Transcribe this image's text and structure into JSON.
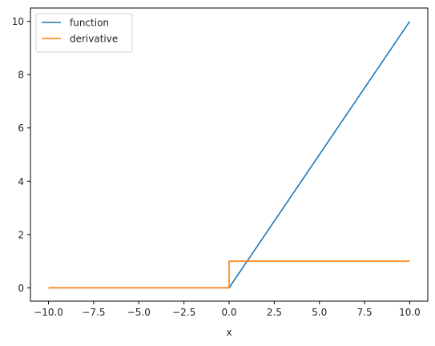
{
  "chart_data": {
    "type": "line",
    "xlabel": "x",
    "ylabel": "",
    "xlim": [
      -11,
      11
    ],
    "ylim": [
      -0.5,
      10.5
    ],
    "xticks": [
      {
        "value": -10.0,
        "label": "−10.0"
      },
      {
        "value": -7.5,
        "label": "−7.5"
      },
      {
        "value": -5.0,
        "label": "−5.0"
      },
      {
        "value": -2.5,
        "label": "−2.5"
      },
      {
        "value": 0.0,
        "label": "0.0"
      },
      {
        "value": 2.5,
        "label": "2.5"
      },
      {
        "value": 5.0,
        "label": "5.0"
      },
      {
        "value": 7.5,
        "label": "7.5"
      },
      {
        "value": 10.0,
        "label": "10.0"
      }
    ],
    "yticks": [
      {
        "value": 0,
        "label": "0"
      },
      {
        "value": 2,
        "label": "2"
      },
      {
        "value": 4,
        "label": "4"
      },
      {
        "value": 6,
        "label": "6"
      },
      {
        "value": 8,
        "label": "8"
      },
      {
        "value": 10,
        "label": "10"
      }
    ],
    "grid": false,
    "legend_position": "top-left",
    "series": [
      {
        "name": "function",
        "color": "#1f77b4",
        "points": [
          [
            -10,
            0
          ],
          [
            0,
            0
          ],
          [
            10,
            10
          ]
        ]
      },
      {
        "name": "derivative",
        "color": "#ff7f0e",
        "points": [
          [
            -10,
            0
          ],
          [
            0,
            0
          ],
          [
            0,
            1
          ],
          [
            10,
            1
          ]
        ]
      }
    ]
  }
}
